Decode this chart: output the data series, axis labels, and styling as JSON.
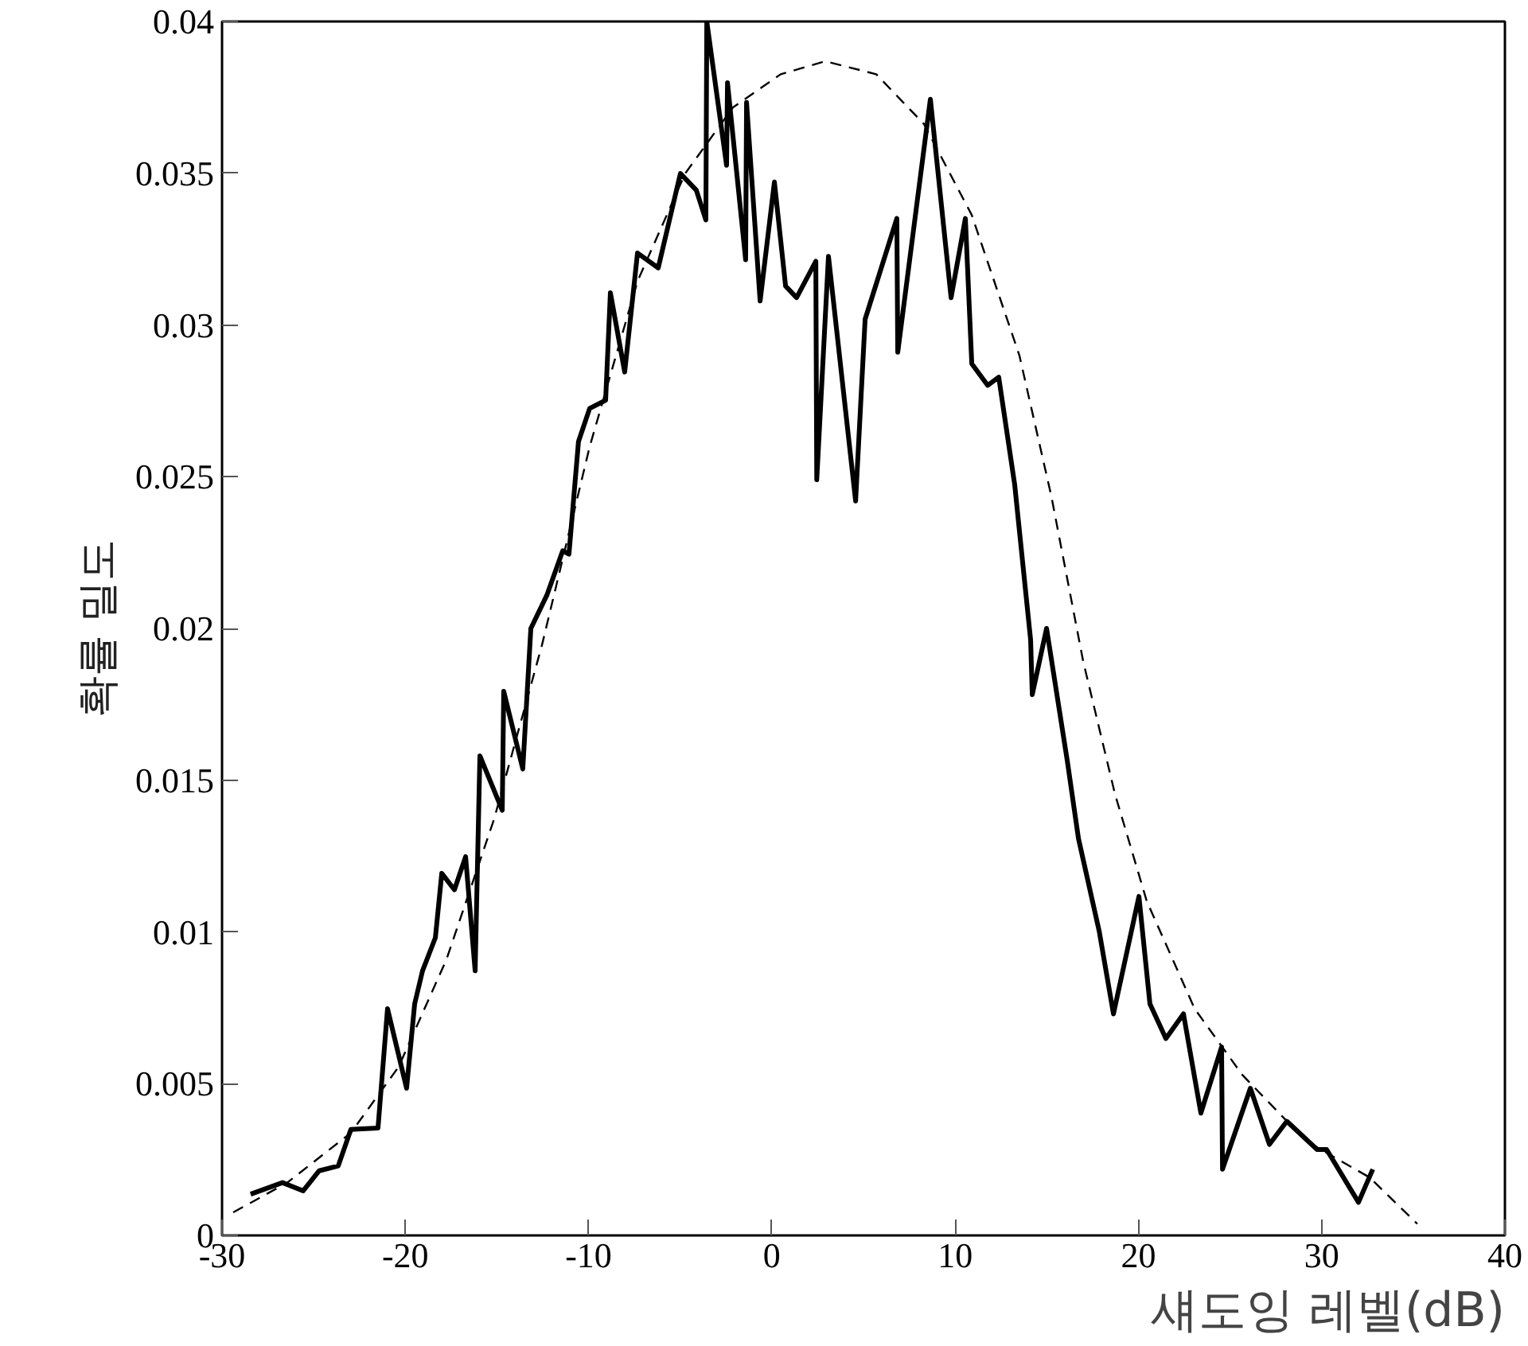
{
  "chart_data": {
    "type": "line",
    "xlabel": "섀도잉 레벨(dB)",
    "ylabel": "확률 밀도",
    "xlim": [
      -30,
      40
    ],
    "xticks": [
      -30,
      -20,
      -10,
      0,
      10,
      20,
      30,
      40
    ],
    "ylim": [
      0,
      0.04
    ],
    "yticks": [
      0,
      0.005,
      0.01,
      0.015,
      0.02,
      0.025,
      0.03,
      0.035,
      0.04
    ],
    "grid": false,
    "series": [
      {
        "color": "#000000",
        "line_style": "solid",
        "x": [
          -28.44,
          -26.7,
          -25.57,
          -24.7,
          -23.66,
          -22.97,
          -21.49,
          -20.97,
          -19.93,
          -19.49,
          -19.06,
          -18.36,
          -18.01,
          -17.32,
          -16.71,
          -16.19,
          -15.93,
          -14.71,
          -14.63,
          -13.59,
          -13.15,
          -12.28,
          -11.41,
          -11.07,
          -10.55,
          -9.94,
          -9.07,
          -8.81,
          -8.03,
          -7.33,
          -6.2,
          -4.99,
          -4.12,
          -3.6,
          -3.55,
          -2.47,
          -2.42,
          -1.43,
          -1.38,
          -0.64,
          0.14,
          0.75,
          1.35,
          2.4,
          2.45,
          3.09,
          4.57,
          5.09,
          6.82,
          6.87,
          8.65,
          9.78,
          10.56,
          10.91,
          11.78,
          12.38,
          13.25,
          14.12,
          14.21,
          14.99,
          16.12,
          16.73,
          17.86,
          18.64,
          20.03,
          20.63,
          21.5,
          22.46,
          23.41,
          24.54,
          24.59,
          26.11,
          27.15,
          28.1,
          29.75,
          30.27,
          32.01,
          32.79
        ],
        "values": [
          0.00136,
          0.00174,
          0.00147,
          0.00213,
          0.00229,
          0.00349,
          0.00354,
          0.00747,
          0.00485,
          0.00763,
          0.00872,
          0.00981,
          0.01193,
          0.01139,
          0.01248,
          0.00872,
          0.0158,
          0.01401,
          0.01793,
          0.01537,
          0.02,
          0.02109,
          0.02256,
          0.02245,
          0.02616,
          0.02725,
          0.02752,
          0.03106,
          0.02845,
          0.03237,
          0.03188,
          0.03499,
          0.03444,
          0.03346,
          0.04,
          0.03526,
          0.03798,
          0.03215,
          0.03733,
          0.03079,
          0.03471,
          0.03128,
          0.0309,
          0.0321,
          0.0249,
          0.03226,
          0.0242,
          0.03019,
          0.03351,
          0.0291,
          0.03744,
          0.0309,
          0.03351,
          0.02872,
          0.02801,
          0.02828,
          0.02474,
          0.01962,
          0.01782,
          0.02,
          0.01564,
          0.01308,
          0.01003,
          0.0073,
          0.01117,
          0.00763,
          0.00649,
          0.0073,
          0.00403,
          0.00621,
          0.00218,
          0.00485,
          0.003,
          0.00376,
          0.00283,
          0.00283,
          0.00109,
          0.00218
        ]
      },
      {
        "color": "#000000",
        "line_style": "dashed",
        "x": [
          -29.39,
          -26.44,
          -22.97,
          -20.36,
          -17.75,
          -15.15,
          -12.54,
          -9.94,
          -7.33,
          -4.73,
          -2.12,
          0.48,
          2.92,
          5.7,
          8.3,
          10.91,
          13.51,
          15.25,
          16.99,
          18.72,
          20.46,
          23.07,
          25.67,
          29.15,
          32.62,
          35.22
        ],
        "values": [
          0.00076,
          0.00174,
          0.00338,
          0.00556,
          0.0091,
          0.01373,
          0.01946,
          0.02599,
          0.03144,
          0.03499,
          0.03717,
          0.03826,
          0.03869,
          0.03826,
          0.03662,
          0.03362,
          0.02899,
          0.02436,
          0.01891,
          0.01455,
          0.01101,
          0.00747,
          0.00529,
          0.00311,
          0.00191,
          0.00038
        ]
      }
    ]
  }
}
